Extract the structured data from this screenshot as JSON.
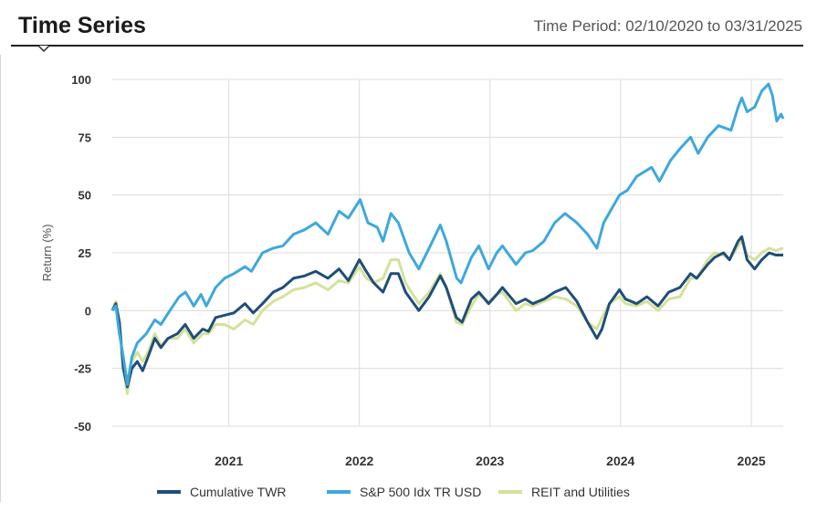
{
  "header": {
    "title": "Time Series",
    "period": "Time Period: 02/10/2020 to 03/31/2025"
  },
  "chart_data": {
    "type": "line",
    "title": "Time Series",
    "ylabel": "Return (%)",
    "xlabel": "",
    "ylim": [
      -50,
      100
    ],
    "yticks": [
      100,
      75,
      50,
      25,
      0,
      -25,
      -50
    ],
    "xlim": [
      "2020-02-10",
      "2025-03-31"
    ],
    "xticks": [
      {
        "date": "2021-01-01",
        "label": "2021"
      },
      {
        "date": "2022-01-01",
        "label": "2022"
      },
      {
        "date": "2023-01-01",
        "label": "2023"
      },
      {
        "date": "2024-01-01",
        "label": "2024"
      },
      {
        "date": "2025-01-01",
        "label": "2025"
      }
    ],
    "grid": true,
    "legend": "bottom",
    "series": [
      {
        "name": "Cumulative TWR",
        "color": "#1f4e79",
        "points": [
          [
            "2020-02-10",
            0
          ],
          [
            "2020-02-20",
            3
          ],
          [
            "2020-03-01",
            -5
          ],
          [
            "2020-03-12",
            -25
          ],
          [
            "2020-03-23",
            -33
          ],
          [
            "2020-04-05",
            -25
          ],
          [
            "2020-04-20",
            -22
          ],
          [
            "2020-05-05",
            -26
          ],
          [
            "2020-05-20",
            -20
          ],
          [
            "2020-06-08",
            -12
          ],
          [
            "2020-06-25",
            -16
          ],
          [
            "2020-07-15",
            -12
          ],
          [
            "2020-08-10",
            -10
          ],
          [
            "2020-09-01",
            -6
          ],
          [
            "2020-09-25",
            -12
          ],
          [
            "2020-10-20",
            -8
          ],
          [
            "2020-11-05",
            -9
          ],
          [
            "2020-11-25",
            -3
          ],
          [
            "2020-12-20",
            -2
          ],
          [
            "2021-01-15",
            -1
          ],
          [
            "2021-02-15",
            3
          ],
          [
            "2021-03-10",
            -1
          ],
          [
            "2021-04-05",
            3
          ],
          [
            "2021-05-05",
            8
          ],
          [
            "2021-06-01",
            10
          ],
          [
            "2021-07-01",
            14
          ],
          [
            "2021-08-01",
            15
          ],
          [
            "2021-09-01",
            17
          ],
          [
            "2021-10-05",
            14
          ],
          [
            "2021-11-05",
            18
          ],
          [
            "2021-12-01",
            13
          ],
          [
            "2022-01-01",
            22
          ],
          [
            "2022-01-20",
            17
          ],
          [
            "2022-02-10",
            12
          ],
          [
            "2022-03-08",
            8
          ],
          [
            "2022-03-30",
            16
          ],
          [
            "2022-04-20",
            16
          ],
          [
            "2022-05-10",
            8
          ],
          [
            "2022-06-16",
            0
          ],
          [
            "2022-07-15",
            6
          ],
          [
            "2022-08-15",
            15
          ],
          [
            "2022-09-01",
            10
          ],
          [
            "2022-09-29",
            -3
          ],
          [
            "2022-10-15",
            -5
          ],
          [
            "2022-11-10",
            5
          ],
          [
            "2022-12-01",
            8
          ],
          [
            "2022-12-28",
            3
          ],
          [
            "2023-01-20",
            7
          ],
          [
            "2023-02-05",
            10
          ],
          [
            "2023-03-15",
            3
          ],
          [
            "2023-04-10",
            5
          ],
          [
            "2023-05-01",
            3
          ],
          [
            "2023-06-01",
            5
          ],
          [
            "2023-07-01",
            8
          ],
          [
            "2023-08-01",
            10
          ],
          [
            "2023-09-01",
            4
          ],
          [
            "2023-10-01",
            -5
          ],
          [
            "2023-10-27",
            -12
          ],
          [
            "2023-11-10",
            -8
          ],
          [
            "2023-12-01",
            3
          ],
          [
            "2023-12-29",
            9
          ],
          [
            "2024-01-15",
            5
          ],
          [
            "2024-02-15",
            3
          ],
          [
            "2024-03-15",
            6
          ],
          [
            "2024-04-15",
            2
          ],
          [
            "2024-05-15",
            8
          ],
          [
            "2024-06-15",
            10
          ],
          [
            "2024-07-15",
            16
          ],
          [
            "2024-08-01",
            14
          ],
          [
            "2024-09-01",
            20
          ],
          [
            "2024-09-20",
            23
          ],
          [
            "2024-10-15",
            25
          ],
          [
            "2024-11-01",
            22
          ],
          [
            "2024-11-25",
            30
          ],
          [
            "2024-12-05",
            32
          ],
          [
            "2024-12-20",
            22
          ],
          [
            "2025-01-10",
            18
          ],
          [
            "2025-01-30",
            22
          ],
          [
            "2025-02-20",
            25
          ],
          [
            "2025-03-10",
            24
          ],
          [
            "2025-03-31",
            24
          ]
        ]
      },
      {
        "name": "S&P 500 Idx TR USD",
        "color": "#3ea8dd",
        "points": [
          [
            "2020-02-10",
            0
          ],
          [
            "2020-02-20",
            2
          ],
          [
            "2020-03-01",
            -10
          ],
          [
            "2020-03-12",
            -20
          ],
          [
            "2020-03-23",
            -32
          ],
          [
            "2020-04-05",
            -20
          ],
          [
            "2020-04-20",
            -14
          ],
          [
            "2020-05-15",
            -10
          ],
          [
            "2020-06-08",
            -4
          ],
          [
            "2020-06-25",
            -6
          ],
          [
            "2020-07-20",
            0
          ],
          [
            "2020-08-15",
            6
          ],
          [
            "2020-09-02",
            8
          ],
          [
            "2020-09-25",
            2
          ],
          [
            "2020-10-15",
            7
          ],
          [
            "2020-10-30",
            2
          ],
          [
            "2020-11-25",
            10
          ],
          [
            "2020-12-20",
            14
          ],
          [
            "2021-01-15",
            16
          ],
          [
            "2021-02-15",
            19
          ],
          [
            "2021-03-05",
            17
          ],
          [
            "2021-04-05",
            25
          ],
          [
            "2021-05-05",
            27
          ],
          [
            "2021-06-01",
            28
          ],
          [
            "2021-07-01",
            33
          ],
          [
            "2021-08-01",
            35
          ],
          [
            "2021-09-01",
            38
          ],
          [
            "2021-10-05",
            33
          ],
          [
            "2021-11-05",
            43
          ],
          [
            "2021-12-01",
            40
          ],
          [
            "2022-01-03",
            48
          ],
          [
            "2022-01-25",
            38
          ],
          [
            "2022-02-20",
            36
          ],
          [
            "2022-03-08",
            30
          ],
          [
            "2022-03-30",
            42
          ],
          [
            "2022-04-20",
            38
          ],
          [
            "2022-05-20",
            25
          ],
          [
            "2022-06-16",
            18
          ],
          [
            "2022-07-15",
            27
          ],
          [
            "2022-08-15",
            37
          ],
          [
            "2022-09-01",
            30
          ],
          [
            "2022-09-30",
            14
          ],
          [
            "2022-10-12",
            12
          ],
          [
            "2022-11-10",
            23
          ],
          [
            "2022-12-01",
            28
          ],
          [
            "2022-12-28",
            18
          ],
          [
            "2023-01-20",
            25
          ],
          [
            "2023-02-05",
            28
          ],
          [
            "2023-03-15",
            20
          ],
          [
            "2023-04-10",
            25
          ],
          [
            "2023-05-01",
            26
          ],
          [
            "2023-06-01",
            30
          ],
          [
            "2023-07-01",
            38
          ],
          [
            "2023-07-30",
            42
          ],
          [
            "2023-09-01",
            38
          ],
          [
            "2023-10-01",
            33
          ],
          [
            "2023-10-27",
            27
          ],
          [
            "2023-11-15",
            38
          ],
          [
            "2023-12-29",
            50
          ],
          [
            "2024-01-20",
            52
          ],
          [
            "2024-02-15",
            58
          ],
          [
            "2024-03-28",
            62
          ],
          [
            "2024-04-19",
            56
          ],
          [
            "2024-05-20",
            65
          ],
          [
            "2024-06-15",
            70
          ],
          [
            "2024-07-15",
            75
          ],
          [
            "2024-08-05",
            68
          ],
          [
            "2024-09-01",
            75
          ],
          [
            "2024-10-01",
            80
          ],
          [
            "2024-11-05",
            78
          ],
          [
            "2024-11-25",
            88
          ],
          [
            "2024-12-05",
            92
          ],
          [
            "2024-12-20",
            86
          ],
          [
            "2025-01-10",
            88
          ],
          [
            "2025-01-30",
            95
          ],
          [
            "2025-02-18",
            98
          ],
          [
            "2025-03-01",
            93
          ],
          [
            "2025-03-13",
            82
          ],
          [
            "2025-03-25",
            85
          ],
          [
            "2025-03-31",
            83
          ]
        ]
      },
      {
        "name": "REIT and Utilities",
        "color": "#d4e29a",
        "points": [
          [
            "2020-02-10",
            0
          ],
          [
            "2020-02-20",
            4
          ],
          [
            "2020-03-01",
            -5
          ],
          [
            "2020-03-12",
            -25
          ],
          [
            "2020-03-23",
            -36
          ],
          [
            "2020-04-05",
            -22
          ],
          [
            "2020-04-20",
            -18
          ],
          [
            "2020-05-05",
            -22
          ],
          [
            "2020-05-20",
            -18
          ],
          [
            "2020-06-08",
            -10
          ],
          [
            "2020-06-25",
            -15
          ],
          [
            "2020-07-15",
            -12
          ],
          [
            "2020-08-10",
            -12
          ],
          [
            "2020-09-01",
            -8
          ],
          [
            "2020-09-25",
            -14
          ],
          [
            "2020-10-20",
            -10
          ],
          [
            "2020-11-05",
            -10
          ],
          [
            "2020-11-25",
            -6
          ],
          [
            "2020-12-20",
            -6
          ],
          [
            "2021-01-15",
            -8
          ],
          [
            "2021-02-15",
            -4
          ],
          [
            "2021-03-10",
            -6
          ],
          [
            "2021-04-05",
            0
          ],
          [
            "2021-05-05",
            4
          ],
          [
            "2021-06-01",
            6
          ],
          [
            "2021-07-01",
            9
          ],
          [
            "2021-08-01",
            10
          ],
          [
            "2021-09-01",
            12
          ],
          [
            "2021-10-05",
            9
          ],
          [
            "2021-11-05",
            13
          ],
          [
            "2021-12-01",
            12
          ],
          [
            "2022-01-01",
            19
          ],
          [
            "2022-01-20",
            14
          ],
          [
            "2022-02-10",
            12
          ],
          [
            "2022-03-08",
            14
          ],
          [
            "2022-03-30",
            22
          ],
          [
            "2022-04-20",
            22
          ],
          [
            "2022-05-10",
            12
          ],
          [
            "2022-06-16",
            3
          ],
          [
            "2022-07-15",
            8
          ],
          [
            "2022-08-15",
            16
          ],
          [
            "2022-09-01",
            10
          ],
          [
            "2022-09-29",
            -5
          ],
          [
            "2022-10-15",
            -6
          ],
          [
            "2022-11-10",
            2
          ],
          [
            "2022-12-01",
            7
          ],
          [
            "2022-12-28",
            4
          ],
          [
            "2023-01-20",
            7
          ],
          [
            "2023-02-05",
            8
          ],
          [
            "2023-03-15",
            0
          ],
          [
            "2023-04-10",
            3
          ],
          [
            "2023-05-01",
            2
          ],
          [
            "2023-06-01",
            4
          ],
          [
            "2023-07-01",
            6
          ],
          [
            "2023-08-01",
            5
          ],
          [
            "2023-09-01",
            2
          ],
          [
            "2023-10-01",
            -5
          ],
          [
            "2023-10-27",
            -8
          ],
          [
            "2023-11-10",
            -3
          ],
          [
            "2023-12-01",
            3
          ],
          [
            "2023-12-29",
            6
          ],
          [
            "2024-01-15",
            3
          ],
          [
            "2024-02-15",
            2
          ],
          [
            "2024-03-15",
            4
          ],
          [
            "2024-04-15",
            0
          ],
          [
            "2024-05-15",
            5
          ],
          [
            "2024-06-15",
            6
          ],
          [
            "2024-07-15",
            14
          ],
          [
            "2024-08-01",
            14
          ],
          [
            "2024-09-01",
            22
          ],
          [
            "2024-09-20",
            25
          ],
          [
            "2024-10-15",
            24
          ],
          [
            "2024-11-01",
            22
          ],
          [
            "2024-11-25",
            28
          ],
          [
            "2024-12-05",
            30
          ],
          [
            "2024-12-20",
            24
          ],
          [
            "2025-01-10",
            22
          ],
          [
            "2025-01-30",
            25
          ],
          [
            "2025-02-20",
            27
          ],
          [
            "2025-03-10",
            26
          ],
          [
            "2025-03-31",
            27
          ]
        ]
      }
    ]
  }
}
